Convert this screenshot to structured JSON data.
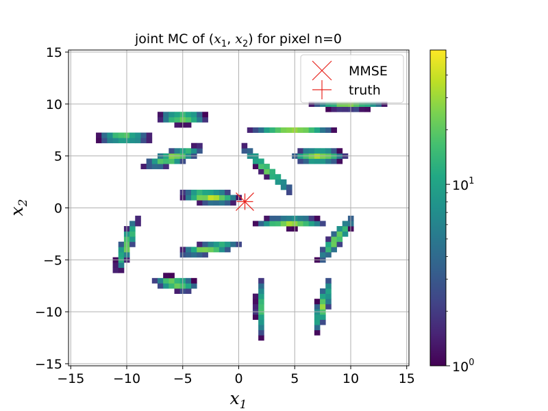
{
  "chart_data": {
    "type": "heatmap",
    "title_text": "joint MC of (",
    "title_var1": "x",
    "title_sub1": "1",
    "title_sep": ", ",
    "title_var2": "x",
    "title_sub2": "2",
    "title_end": ") for pixel n=0",
    "xlabel_var": "x",
    "xlabel_sub": "1",
    "ylabel_var": "x",
    "ylabel_sub": "2",
    "xlim": [
      -15.2,
      15.2
    ],
    "ylim": [
      -15.2,
      15.2
    ],
    "xticks": [
      -15,
      -10,
      -5,
      0,
      5,
      10,
      15
    ],
    "yticks": [
      -15,
      -10,
      -5,
      0,
      5,
      10,
      15
    ],
    "xtick_labels": [
      "−15",
      "−10",
      "−5",
      "0",
      "5",
      "10",
      "15"
    ],
    "ytick_labels": [
      "−15",
      "−10",
      "−5",
      "0",
      "5",
      "10",
      "15"
    ],
    "grid": true,
    "bin_width": 0.5,
    "clusters": [
      {
        "cx": -5.0,
        "cy": 8.7,
        "angle_deg": 0,
        "sx": 1.1,
        "sy": 0.35,
        "peak": 28
      },
      {
        "cx": -10.2,
        "cy": 6.8,
        "angle_deg": 0,
        "sx": 1.3,
        "sy": 0.28,
        "peak": 24
      },
      {
        "cx": -5.8,
        "cy": 4.9,
        "angle_deg": 18,
        "sx": 1.4,
        "sy": 0.35,
        "peak": 30
      },
      {
        "cx": 4.8,
        "cy": 7.5,
        "angle_deg": 0,
        "sx": 1.9,
        "sy": 0.17,
        "peak": 25
      },
      {
        "cx": 9.8,
        "cy": 9.9,
        "angle_deg": 0,
        "sx": 1.7,
        "sy": 0.22,
        "peak": 26
      },
      {
        "cx": 2.5,
        "cy": 3.7,
        "angle_deg": -45,
        "sx": 1.8,
        "sy": 0.25,
        "peak": 22
      },
      {
        "cx": 7.1,
        "cy": 5.0,
        "angle_deg": 0,
        "sx": 1.2,
        "sy": 0.38,
        "peak": 32
      },
      {
        "cx": -2.6,
        "cy": 1.1,
        "angle_deg": -5,
        "sx": 1.3,
        "sy": 0.35,
        "peak": 34
      },
      {
        "cx": 4.7,
        "cy": -1.4,
        "angle_deg": 0,
        "sx": 1.6,
        "sy": 0.28,
        "peak": 30
      },
      {
        "cx": -10.0,
        "cy": -3.5,
        "angle_deg": 72,
        "sx": 1.5,
        "sy": 0.28,
        "peak": 24
      },
      {
        "cx": 8.7,
        "cy": -3.0,
        "angle_deg": 55,
        "sx": 1.4,
        "sy": 0.3,
        "peak": 26
      },
      {
        "cx": -2.6,
        "cy": -3.9,
        "angle_deg": 10,
        "sx": 1.4,
        "sy": 0.28,
        "peak": 30
      },
      {
        "cx": -5.6,
        "cy": -7.3,
        "angle_deg": -8,
        "sx": 1.0,
        "sy": 0.35,
        "peak": 30
      },
      {
        "cx": 1.9,
        "cy": -9.6,
        "angle_deg": 90,
        "sx": 1.5,
        "sy": 0.22,
        "peak": 20
      },
      {
        "cx": 7.5,
        "cy": -9.4,
        "angle_deg": 75,
        "sx": 1.4,
        "sy": 0.28,
        "peak": 26
      }
    ],
    "mmse": {
      "x": 0.55,
      "y": 0.6
    },
    "truth": {
      "x": 0.55,
      "y": 0.6
    },
    "marker_color": "#e8251f",
    "legend": {
      "placement": "upper right",
      "entries": [
        {
          "label": "MMSE",
          "marker": "x"
        },
        {
          "label": "truth",
          "marker": "+"
        }
      ]
    },
    "colorbar": {
      "cmap": "viridis",
      "scale": "log",
      "vmin": 1,
      "vmax": 55,
      "tick_base": "10",
      "ticks": [
        {
          "value": 1,
          "exp": "0"
        },
        {
          "value": 10,
          "exp": "1"
        }
      ]
    },
    "grid_color": "#b0b0b0"
  }
}
